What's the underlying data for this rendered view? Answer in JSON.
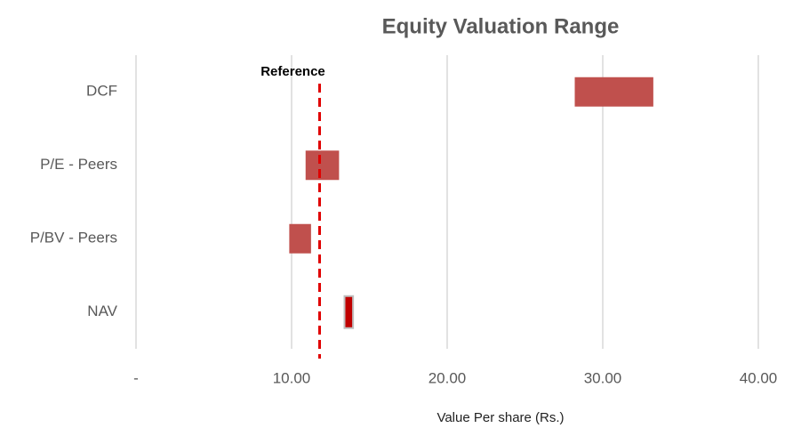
{
  "chart_data": {
    "type": "range-bar",
    "title": "Equity Valuation Range",
    "x_label": "Value Per share (Rs.)",
    "categories": [
      "DCF",
      "P/E - Peers",
      "P/BV - Peers",
      "NAV"
    ],
    "low": [
      28.2,
      10.9,
      9.85,
      13.4
    ],
    "high": [
      33.25,
      13.05,
      11.25,
      13.95
    ],
    "colors": [
      "#c0504d",
      "#c0504d",
      "#c0504d",
      "#c00000"
    ],
    "reference": {
      "label": "Reference",
      "value": 11.8,
      "color": "#e00000"
    },
    "xlim": [
      0,
      40
    ],
    "xticks": [
      {
        "value": 0,
        "label": "-"
      },
      {
        "value": 10,
        "label": "10.00"
      },
      {
        "value": 20,
        "label": "20.00"
      },
      {
        "value": 30,
        "label": "30.00"
      },
      {
        "value": 40,
        "label": "40.00"
      }
    ],
    "grid": true
  }
}
